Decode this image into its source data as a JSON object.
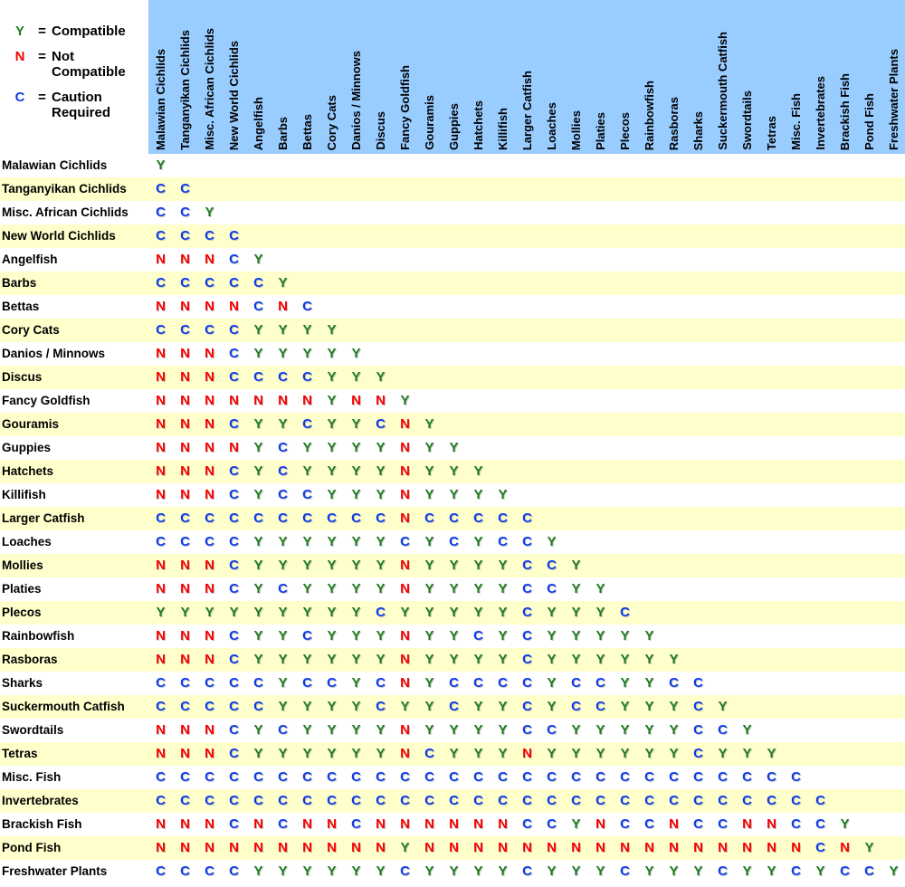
{
  "legend": {
    "equals": "=",
    "items": [
      {
        "symbol": "Y",
        "label": "Compatible"
      },
      {
        "symbol": "N",
        "label": "Not\nCompatible"
      },
      {
        "symbol": "C",
        "label": "Caution\nRequired"
      }
    ]
  },
  "colors": {
    "compatible_green": "#1d7b1d",
    "not_compatible_red": "#fa0000",
    "caution_blue": "#0d3bea",
    "header_bg": "#99ccff",
    "row_stripe_bg": "#ffffcc",
    "text": "#000000"
  },
  "chart_data": {
    "type": "table",
    "legend": {
      "Y": "Compatible",
      "N": "Not Compatible",
      "C": "Caution Required"
    },
    "species": [
      "Malawian Cichlids",
      "Tanganyikan Cichlids",
      "Misc. African Cichlids",
      "New World Cichlids",
      "Angelfish",
      "Barbs",
      "Bettas",
      "Cory Cats",
      "Danios / Minnows",
      "Discus",
      "Fancy Goldfish",
      "Gouramis",
      "Guppies",
      "Hatchets",
      "Killifish",
      "Larger Catfish",
      "Loaches",
      "Mollies",
      "Platies",
      "Plecos",
      "Rainbowfish",
      "Rasboras",
      "Sharks",
      "Suckermouth Catfish",
      "Swordtails",
      "Tetras",
      "Misc. Fish",
      "Invertebrates",
      "Brackish Fish",
      "Pond Fish",
      "Freshwater Plants"
    ],
    "matrix": [
      "Y",
      "CC",
      "CCY",
      "CCCC",
      "NNNCY",
      "CCCCCY",
      "NNNNCNC",
      "CCCCYYYY",
      "NNNCYYYYY",
      "NNNCCCCYYY",
      "NNNNNNNYNNY",
      "NNNCYYCYYCNY",
      "NNNNYCYYYYNYY",
      "NNNCYCYYYYNYYY",
      "NNNCYCCYYYNYYYY",
      "CCCCCCCCCCNCCCCC",
      "CCCCYYYYYYCYCYCCY",
      "NNNCYYYYYYNYYYYCCY",
      "NNNCYCYYYYNYYYYCCYY",
      "YYYYYYYYYCYYYYYCYYYC",
      "NNNCYYCYYYNYYCYCYYYYY",
      "NNNCYYYYYYNYYYYCYYYYYY",
      "CCCCCYCCYCNYCCCCYCCYYCC",
      "CCCCCYYYYCYYCYYCYCCYYYCY",
      "NNNCYCYYYYNYYYYCCYYYYYCCY",
      "NNNCYYYYYYNCYYYNYYYYYYCYYY",
      "CCCCCCCCCCCCCCCCCCCCCCCCCCC",
      "CCCCCCCCCCCCCCCCCCCCCCCCCCCC",
      "NNNCNCNNCNNNNNNCCYNCCNCCNNCCY",
      "NNNNNNNNNNYNNNNNNNNNNNNNNNNCNY",
      "CCCCYYYYYYCYYYYCYYYCYYYCYYCYCCY"
    ]
  }
}
